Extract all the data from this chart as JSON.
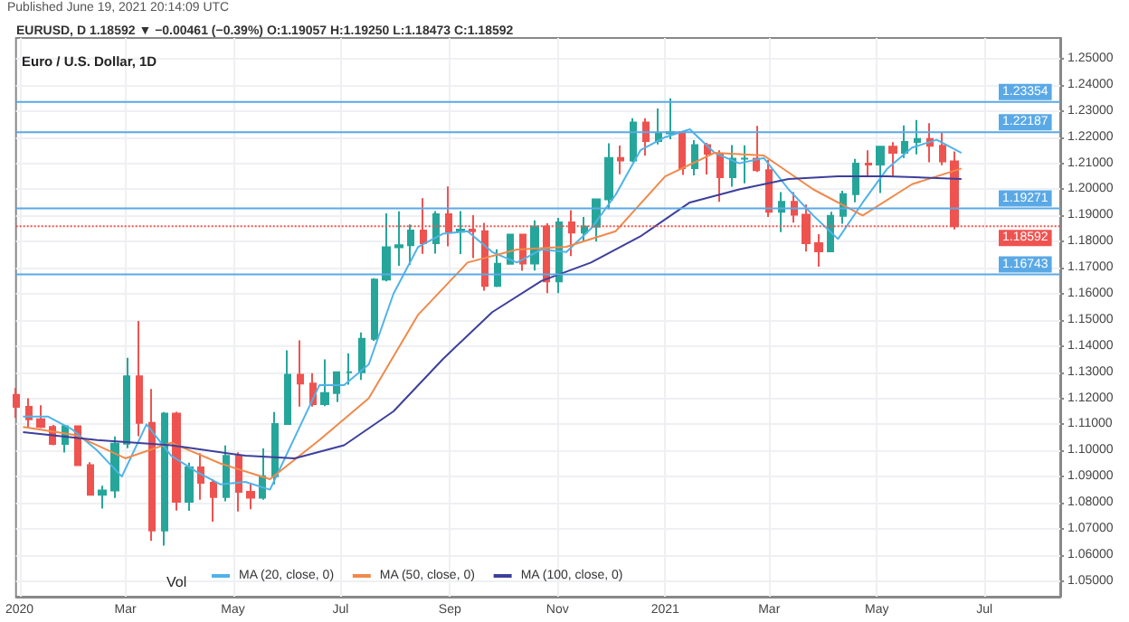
{
  "chart_data": {
    "type": "candlestick",
    "title": "Euro / U.S. Dollar, 1D",
    "subtitle": "EURUSD, D 1.18592 ▼ −0.00461 (−0.39%) O:1.19057 H:1.19250 L:1.18473 C:1.18592",
    "annotations": [
      "Published June 19, 2021 20:14:09 UTC",
      "Vol"
    ],
    "xlim": [
      "2019-12-30",
      "2021-08-13"
    ],
    "xticks": [
      {
        "value": "2020-01-01",
        "label": "2020"
      },
      {
        "value": "2020-03-01",
        "label": "Mar"
      },
      {
        "value": "2020-05-01",
        "label": "May"
      },
      {
        "value": "2020-07-01",
        "label": "Jul"
      },
      {
        "value": "2020-09-01",
        "label": "Sep"
      },
      {
        "value": "2020-11-01",
        "label": "Nov"
      },
      {
        "value": "2021-01-01",
        "label": "2021"
      },
      {
        "value": "2021-03-01",
        "label": "Mar"
      },
      {
        "value": "2021-05-01",
        "label": "May"
      },
      {
        "value": "2021-07-01",
        "label": "Jul"
      }
    ],
    "ylim": [
      1.044,
      1.258
    ],
    "yticks": [
      {
        "value": 1.05,
        "label": "1.05000"
      },
      {
        "value": 1.06,
        "label": "1.06000"
      },
      {
        "value": 1.07,
        "label": "1.07000"
      },
      {
        "value": 1.08,
        "label": "1.08000"
      },
      {
        "value": 1.09,
        "label": "1.09000"
      },
      {
        "value": 1.1,
        "label": "1.10000"
      },
      {
        "value": 1.11,
        "label": "1.11000"
      },
      {
        "value": 1.12,
        "label": "1.12000"
      },
      {
        "value": 1.13,
        "label": "1.13000"
      },
      {
        "value": 1.14,
        "label": "1.14000"
      },
      {
        "value": 1.15,
        "label": "1.15000"
      },
      {
        "value": 1.16,
        "label": "1.16000"
      },
      {
        "value": 1.17,
        "label": "1.17000"
      },
      {
        "value": 1.18,
        "label": "1.18000"
      },
      {
        "value": 1.19,
        "label": "1.19000"
      },
      {
        "value": 1.2,
        "label": "1.20000"
      },
      {
        "value": 1.21,
        "label": "1.21000"
      },
      {
        "value": 1.22,
        "label": "1.22000"
      },
      {
        "value": 1.23,
        "label": "1.23000"
      },
      {
        "value": 1.24,
        "label": "1.24000"
      },
      {
        "value": 1.25,
        "label": "1.25000"
      }
    ],
    "grid": true,
    "legend": "bottom",
    "ref_lines": [
      {
        "axis": "y",
        "value": 1.23354,
        "label": "1.23354",
        "color": "#5aa9e6",
        "line_style": "solid"
      },
      {
        "axis": "y",
        "value": 1.22187,
        "label": "1.22187",
        "color": "#5aa9e6",
        "line_style": "solid"
      },
      {
        "axis": "y",
        "value": 1.19271,
        "label": "1.19271",
        "color": "#5aa9e6",
        "line_style": "solid"
      },
      {
        "axis": "y",
        "value": 1.16743,
        "label": "1.16743",
        "color": "#5aa9e6",
        "line_style": "solid"
      },
      {
        "axis": "y",
        "value": 1.18592,
        "label": "1.18592",
        "color": "#ef5350",
        "line_style": "dotted"
      }
    ],
    "series": [
      {
        "type": "candlestick",
        "x": [
          "2019-12-30",
          "2020-01-06",
          "2020-01-13",
          "2020-01-20",
          "2020-01-27",
          "2020-02-03",
          "2020-02-10",
          "2020-02-17",
          "2020-02-24",
          "2020-03-02",
          "2020-03-09",
          "2020-03-16",
          "2020-03-23",
          "2020-03-30",
          "2020-04-06",
          "2020-04-13",
          "2020-04-20",
          "2020-04-27",
          "2020-05-04",
          "2020-05-11",
          "2020-05-18",
          "2020-05-25",
          "2020-06-01",
          "2020-06-08",
          "2020-06-15",
          "2020-06-22",
          "2020-06-29",
          "2020-07-06",
          "2020-07-13",
          "2020-07-20",
          "2020-07-27",
          "2020-08-03",
          "2020-08-10",
          "2020-08-17",
          "2020-08-24",
          "2020-08-31",
          "2020-09-07",
          "2020-09-14",
          "2020-09-21",
          "2020-09-28",
          "2020-10-05",
          "2020-10-12",
          "2020-10-19",
          "2020-10-26",
          "2020-11-02",
          "2020-11-09",
          "2020-11-16",
          "2020-11-23",
          "2020-11-30",
          "2020-12-07",
          "2020-12-14",
          "2020-12-21",
          "2020-12-28",
          "2021-01-04",
          "2021-01-11",
          "2021-01-18",
          "2021-01-25",
          "2021-02-01",
          "2021-02-08",
          "2021-02-15",
          "2021-02-22",
          "2021-03-01",
          "2021-03-08",
          "2021-03-15",
          "2021-03-22",
          "2021-03-29",
          "2021-04-05",
          "2021-04-12",
          "2021-04-19",
          "2021-04-26",
          "2021-05-03",
          "2021-05-10",
          "2021-05-17",
          "2021-05-24",
          "2021-05-31",
          "2021-06-07",
          "2021-06-14"
        ],
        "ohlc": [
          [
            1.1213,
            1.1239,
            1.1125,
            1.1167
          ],
          [
            1.1167,
            1.12,
            1.1086,
            1.112
          ],
          [
            1.112,
            1.1173,
            1.1086,
            1.109
          ],
          [
            1.109,
            1.1098,
            1.102,
            1.1025
          ],
          [
            1.1025,
            1.1096,
            1.0992,
            1.1093
          ],
          [
            1.1093,
            1.1096,
            1.0942,
            1.0944
          ],
          [
            1.0944,
            1.0955,
            1.0827,
            1.083
          ],
          [
            1.083,
            1.0865,
            1.0778,
            1.0847
          ],
          [
            1.0847,
            1.1054,
            1.0818,
            1.1026
          ],
          [
            1.1026,
            1.1355,
            1.1009,
            1.1284
          ],
          [
            1.1284,
            1.1496,
            1.1055,
            1.1106
          ],
          [
            1.1106,
            1.1236,
            1.0654,
            1.0694
          ],
          [
            1.0694,
            1.1147,
            1.0636,
            1.1141
          ],
          [
            1.1141,
            1.1148,
            1.077,
            1.0804
          ],
          [
            1.0804,
            1.0953,
            1.0769,
            1.0935
          ],
          [
            1.0935,
            1.099,
            1.0811,
            1.0876
          ],
          [
            1.0876,
            1.089,
            1.0727,
            1.0822
          ],
          [
            1.0822,
            1.1019,
            1.0805,
            1.0979
          ],
          [
            1.0979,
            1.0993,
            1.0766,
            1.0842
          ],
          [
            1.0842,
            1.0875,
            1.0775,
            1.0819
          ],
          [
            1.0819,
            1.1008,
            1.0811,
            1.0901
          ],
          [
            1.0901,
            1.1147,
            1.087,
            1.1101
          ],
          [
            1.1101,
            1.1384,
            1.11,
            1.129
          ],
          [
            1.129,
            1.1422,
            1.1168,
            1.1256
          ],
          [
            1.1256,
            1.1296,
            1.1168,
            1.1178
          ],
          [
            1.1178,
            1.1349,
            1.117,
            1.122
          ],
          [
            1.122,
            1.1302,
            1.1185,
            1.13
          ],
          [
            1.13,
            1.1372,
            1.1252,
            1.13
          ],
          [
            1.13,
            1.1452,
            1.127,
            1.1428
          ],
          [
            1.1428,
            1.166,
            1.142,
            1.1655
          ],
          [
            1.1655,
            1.1908,
            1.1648,
            1.1778
          ],
          [
            1.1778,
            1.1916,
            1.1707,
            1.1786
          ],
          [
            1.1786,
            1.1866,
            1.1711,
            1.1842
          ],
          [
            1.1842,
            1.1966,
            1.1753,
            1.1794
          ],
          [
            1.1794,
            1.1917,
            1.1754,
            1.1905
          ],
          [
            1.1905,
            1.2011,
            1.1782,
            1.1838
          ],
          [
            1.1838,
            1.1917,
            1.1752,
            1.1846
          ],
          [
            1.1846,
            1.1901,
            1.1737,
            1.184
          ],
          [
            1.184,
            1.1872,
            1.1612,
            1.163
          ],
          [
            1.163,
            1.1771,
            1.1626,
            1.1715
          ],
          [
            1.1715,
            1.183,
            1.1714,
            1.1827
          ],
          [
            1.1827,
            1.1828,
            1.1688,
            1.1716
          ],
          [
            1.1716,
            1.1881,
            1.1689,
            1.1858
          ],
          [
            1.1858,
            1.187,
            1.1603,
            1.1648
          ],
          [
            1.1648,
            1.1891,
            1.1603,
            1.1874
          ],
          [
            1.1874,
            1.192,
            1.1745,
            1.1835
          ],
          [
            1.1835,
            1.1894,
            1.1801,
            1.1857
          ],
          [
            1.1857,
            1.1964,
            1.18,
            1.1962
          ],
          [
            1.1962,
            1.2177,
            1.1924,
            1.212
          ],
          [
            1.212,
            1.2168,
            1.2058,
            1.2111
          ],
          [
            1.2111,
            1.2273,
            1.2105,
            1.2256
          ],
          [
            1.2256,
            1.2273,
            1.213,
            1.2185
          ],
          [
            1.2185,
            1.231,
            1.2172,
            1.2215
          ],
          [
            1.2215,
            1.2349,
            1.2192,
            1.222
          ],
          [
            1.222,
            1.2223,
            1.2055,
            1.2081
          ],
          [
            1.2081,
            1.2189,
            1.2054,
            1.217
          ],
          [
            1.217,
            1.2178,
            1.2057,
            1.2137
          ],
          [
            1.2137,
            1.215,
            1.1952,
            1.2047
          ],
          [
            1.2047,
            1.217,
            1.201,
            1.2118
          ],
          [
            1.2118,
            1.2169,
            1.2023,
            1.2118
          ],
          [
            1.2118,
            1.2243,
            1.2067,
            1.2074
          ],
          [
            1.2074,
            1.2113,
            1.1894,
            1.1914
          ],
          [
            1.1914,
            1.199,
            1.1836,
            1.1952
          ],
          [
            1.1952,
            1.199,
            1.1873,
            1.1903
          ],
          [
            1.1903,
            1.1942,
            1.1762,
            1.1794
          ],
          [
            1.1794,
            1.1829,
            1.1704,
            1.1763
          ],
          [
            1.1763,
            1.1914,
            1.1761,
            1.1899
          ],
          [
            1.1899,
            1.1995,
            1.1868,
            1.1982
          ],
          [
            1.1982,
            1.2117,
            1.1951,
            1.2099
          ],
          [
            1.2099,
            1.215,
            1.2051,
            1.2095
          ],
          [
            1.2095,
            1.2166,
            1.1986,
            1.2164
          ],
          [
            1.2164,
            1.2181,
            1.2051,
            1.214
          ],
          [
            1.214,
            1.2245,
            1.212,
            1.2182
          ],
          [
            1.2182,
            1.2266,
            1.2134,
            1.2193
          ],
          [
            1.2193,
            1.2254,
            1.2104,
            1.2167
          ],
          [
            1.2167,
            1.2218,
            1.2093,
            1.2107
          ],
          [
            1.2107,
            1.2145,
            1.1847,
            1.1859
          ]
        ],
        "colors": [
          "#ef5350",
          "#ef5350",
          "#ef5350",
          "#ef5350",
          "#26a69a",
          "#ef5350",
          "#ef5350",
          "#26a69a",
          "#26a69a",
          "#26a69a",
          "#ef5350",
          "#ef5350",
          "#26a69a",
          "#ef5350",
          "#26a69a",
          "#ef5350",
          "#ef5350",
          "#26a69a",
          "#ef5350",
          "#ef5350",
          "#26a69a",
          "#26a69a",
          "#26a69a",
          "#ef5350",
          "#ef5350",
          "#26a69a",
          "#26a69a",
          "#26a69a",
          "#26a69a",
          "#26a69a",
          "#26a69a",
          "#26a69a",
          "#26a69a",
          "#ef5350",
          "#26a69a",
          "#ef5350",
          "#26a69a",
          "#ef5350",
          "#ef5350",
          "#26a69a",
          "#26a69a",
          "#ef5350",
          "#26a69a",
          "#ef5350",
          "#26a69a",
          "#ef5350",
          "#26a69a",
          "#26a69a",
          "#26a69a",
          "#ef5350",
          "#26a69a",
          "#ef5350",
          "#26a69a",
          "#26a69a",
          "#ef5350",
          "#26a69a",
          "#ef5350",
          "#ef5350",
          "#26a69a",
          "#26a69a",
          "#ef5350",
          "#ef5350",
          "#26a69a",
          "#ef5350",
          "#ef5350",
          "#ef5350",
          "#26a69a",
          "#26a69a",
          "#26a69a",
          "#ef5350",
          "#26a69a",
          "#ef5350",
          "#26a69a",
          "#26a69a",
          "#ef5350",
          "#ef5350",
          "#ef5350"
        ]
      },
      {
        "type": "line",
        "name": "MA (20, close, 0)",
        "color": "#4fb3e8",
        "x": [
          "2020-01-03",
          "2020-01-17",
          "2020-01-31",
          "2020-02-14",
          "2020-02-28",
          "2020-03-13",
          "2020-03-27",
          "2020-04-10",
          "2020-04-24",
          "2020-05-08",
          "2020-05-22",
          "2020-06-05",
          "2020-06-19",
          "2020-07-03",
          "2020-07-17",
          "2020-07-31",
          "2020-08-14",
          "2020-08-28",
          "2020-09-11",
          "2020-09-25",
          "2020-10-09",
          "2020-10-23",
          "2020-11-06",
          "2020-11-20",
          "2020-12-04",
          "2020-12-18",
          "2021-01-01",
          "2021-01-15",
          "2021-01-29",
          "2021-02-12",
          "2021-02-26",
          "2021-03-12",
          "2021-03-26",
          "2021-04-09",
          "2021-04-23",
          "2021-05-07",
          "2021-05-21",
          "2021-06-04",
          "2021-06-18"
        ],
        "values": [
          1.113,
          1.113,
          1.108,
          1.1,
          1.09,
          1.11,
          1.098,
          1.092,
          1.087,
          1.088,
          1.085,
          1.105,
          1.125,
          1.125,
          1.133,
          1.16,
          1.178,
          1.183,
          1.184,
          1.176,
          1.172,
          1.177,
          1.176,
          1.185,
          1.198,
          1.215,
          1.22,
          1.223,
          1.214,
          1.21,
          1.212,
          1.2,
          1.19,
          1.181,
          1.195,
          1.208,
          1.216,
          1.219,
          1.214
        ]
      },
      {
        "type": "line",
        "name": "MA (50, close, 0)",
        "color": "#f0894a",
        "x": [
          "2020-01-03",
          "2020-02-01",
          "2020-03-01",
          "2020-03-27",
          "2020-04-24",
          "2020-05-22",
          "2020-06-19",
          "2020-07-17",
          "2020-08-14",
          "2020-09-11",
          "2020-10-09",
          "2020-11-06",
          "2020-12-04",
          "2021-01-01",
          "2021-01-29",
          "2021-02-26",
          "2021-03-26",
          "2021-04-23",
          "2021-05-21",
          "2021-06-18"
        ],
        "values": [
          1.109,
          1.106,
          1.097,
          1.103,
          1.095,
          1.089,
          1.104,
          1.12,
          1.152,
          1.172,
          1.177,
          1.178,
          1.184,
          1.205,
          1.214,
          1.213,
          1.2,
          1.19,
          1.202,
          1.208
        ]
      },
      {
        "type": "line",
        "name": "MA (100, close, 0)",
        "color": "#3d3f9c",
        "x": [
          "2020-01-03",
          "2020-02-14",
          "2020-03-27",
          "2020-05-08",
          "2020-06-05",
          "2020-07-03",
          "2020-07-31",
          "2020-08-28",
          "2020-09-25",
          "2020-10-23",
          "2020-11-20",
          "2020-12-18",
          "2021-01-15",
          "2021-02-12",
          "2021-03-12",
          "2021-04-09",
          "2021-05-07",
          "2021-06-18"
        ],
        "values": [
          1.107,
          1.104,
          1.102,
          1.098,
          1.097,
          1.102,
          1.115,
          1.135,
          1.153,
          1.165,
          1.172,
          1.182,
          1.195,
          1.2,
          1.204,
          1.205,
          1.205,
          1.204
        ]
      }
    ]
  }
}
